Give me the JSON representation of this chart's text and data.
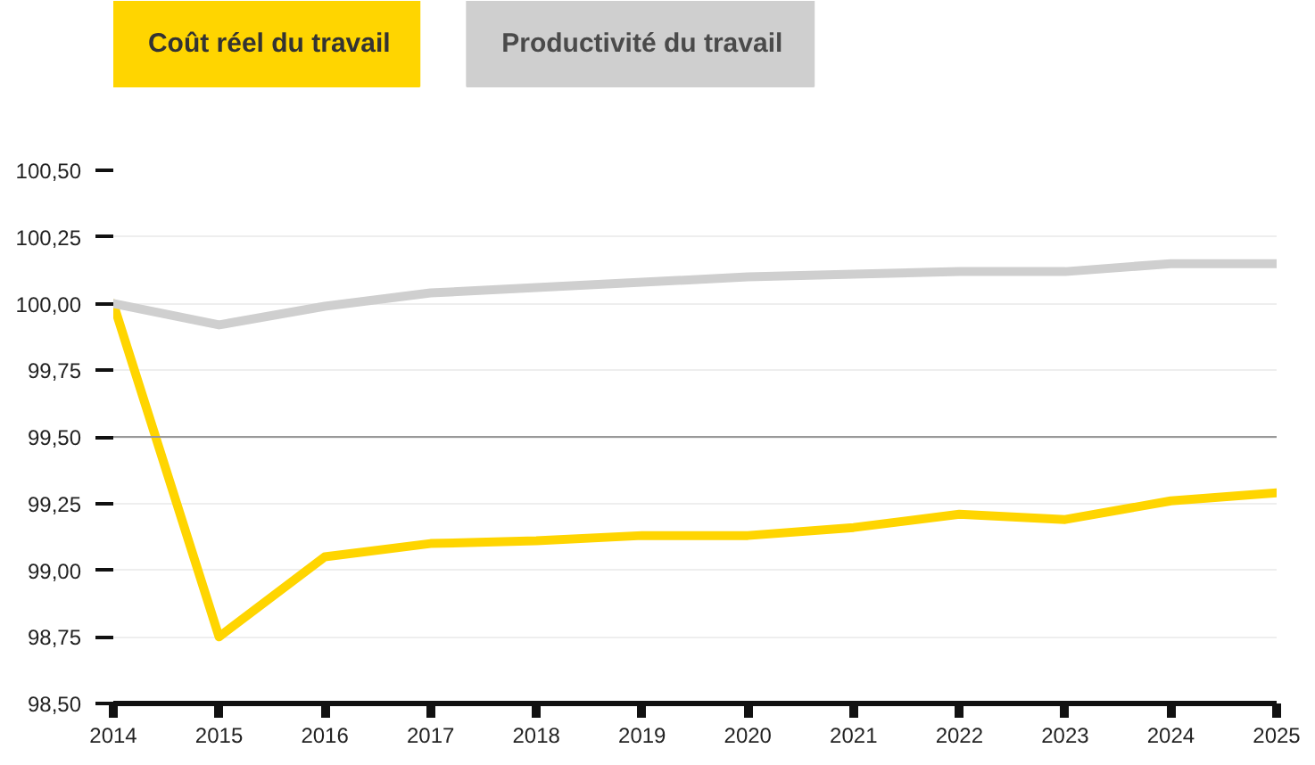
{
  "chart_data": {
    "type": "line",
    "x": [
      2014,
      2015,
      2016,
      2017,
      2018,
      2019,
      2020,
      2021,
      2022,
      2023,
      2024,
      2025
    ],
    "series": [
      {
        "name": "Coût réel du travail",
        "color": "#ffd500",
        "values": [
          100.0,
          98.75,
          99.05,
          99.1,
          99.11,
          99.13,
          99.13,
          99.16,
          99.21,
          99.19,
          99.26,
          99.29
        ]
      },
      {
        "name": "Productivité du travail",
        "color": "#cfcfcf",
        "values": [
          100.0,
          99.92,
          99.99,
          100.04,
          100.06,
          100.08,
          100.1,
          100.11,
          100.12,
          100.12,
          100.15,
          100.15
        ]
      }
    ],
    "xlim": [
      2014,
      2025
    ],
    "xticks": [
      2014,
      2015,
      2016,
      2017,
      2018,
      2019,
      2020,
      2021,
      2022,
      2023,
      2024,
      2025
    ],
    "ylim": [
      98.5,
      100.5
    ],
    "yticks": [
      {
        "value": 98.5,
        "label": "98,50"
      },
      {
        "value": 98.75,
        "label": "98,75"
      },
      {
        "value": 99.0,
        "label": "99,00"
      },
      {
        "value": 99.25,
        "label": "99,25"
      },
      {
        "value": 99.5,
        "label": "99,50"
      },
      {
        "value": 99.75,
        "label": "99,75"
      },
      {
        "value": 100.0,
        "label": "100,00"
      },
      {
        "value": 100.25,
        "label": "100,25"
      },
      {
        "value": 100.5,
        "label": "100,50"
      }
    ],
    "ref_lines": [
      {
        "axis": "y",
        "value": 99.5,
        "color": "#999999"
      }
    ],
    "grid": "y",
    "legend": "top left",
    "marker": "none",
    "line_style": "solid"
  }
}
